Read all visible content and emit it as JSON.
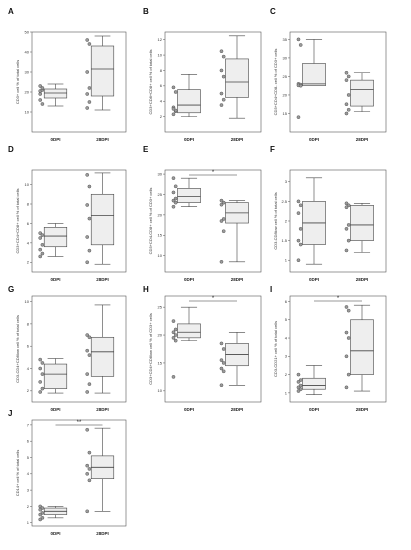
{
  "chart_data": [
    {
      "panel": "A",
      "type": "box",
      "ylabel": "CD3+ cell % of total cells",
      "categories": [
        "0DPI",
        "28DPI"
      ],
      "ylim": [
        0,
        50
      ],
      "yticks": [
        10,
        20,
        30,
        40,
        50
      ],
      "boxes": [
        {
          "min": 13,
          "q1": 17,
          "median": 19.5,
          "q3": 21.5,
          "max": 24
        },
        {
          "min": 11,
          "q1": 18,
          "median": 31.5,
          "q3": 43,
          "max": 48
        }
      ],
      "points": [
        [
          20.5,
          21,
          19,
          22,
          16,
          14,
          23
        ],
        [
          46,
          44,
          30,
          22,
          19,
          15,
          12
        ]
      ],
      "significance": ""
    },
    {
      "panel": "B",
      "type": "box",
      "ylabel": "CD3+CD8+CD8+ cell % of total cells",
      "categories": [
        "0DPI",
        "28DPI"
      ],
      "ylim": [
        0,
        13
      ],
      "yticks": [
        2,
        4,
        6,
        8,
        10,
        12
      ],
      "boxes": [
        {
          "min": 2,
          "q1": 2.5,
          "median": 3.5,
          "q3": 5.5,
          "max": 7.5
        },
        {
          "min": 1.8,
          "q1": 4.5,
          "median": 6.5,
          "q3": 9.5,
          "max": 12.5
        }
      ],
      "points": [
        [
          5.8,
          5.2,
          3.2,
          2.7,
          2.3,
          2.8,
          3.0
        ],
        [
          10.5,
          9.8,
          8.0,
          7.2,
          5.0,
          4.2,
          3.5
        ]
      ],
      "significance": ""
    },
    {
      "panel": "C",
      "type": "box",
      "ylabel": "CD3+CD4+CD8- cell % of CD3+ cells",
      "categories": [
        "0DPI",
        "28DPI"
      ],
      "ylim": [
        10,
        37
      ],
      "yticks": [
        15,
        20,
        25,
        30,
        35
      ],
      "boxes": [
        {
          "min": 22.5,
          "q1": 22.5,
          "median": 23,
          "q3": 28.5,
          "max": 35
        },
        {
          "min": 15.5,
          "q1": 17,
          "median": 21.5,
          "q3": 24,
          "max": 26
        }
      ],
      "points": [
        [
          35,
          33.5,
          23,
          22.8,
          22.6,
          22.5,
          14
        ],
        [
          26,
          25,
          24,
          20,
          17.5,
          16,
          15
        ]
      ],
      "significance": ""
    },
    {
      "panel": "D",
      "type": "box",
      "ylabel": "CD3+CD4+CD8+ cell % of total cells",
      "categories": [
        "0DPI",
        "28DPI"
      ],
      "ylim": [
        1,
        11.5
      ],
      "yticks": [
        2,
        4,
        6,
        8,
        10
      ],
      "boxes": [
        {
          "min": 2.6,
          "q1": 3.6,
          "median": 4.7,
          "q3": 5.6,
          "max": 6
        },
        {
          "min": 1.8,
          "q1": 3.8,
          "median": 6.8,
          "q3": 9,
          "max": 11.2
        }
      ],
      "points": [
        [
          5.0,
          4.8,
          4.5,
          3.8,
          3.3,
          2.9,
          2.6
        ],
        [
          11.0,
          9.8,
          7.9,
          6.5,
          4.6,
          3.2,
          2.0
        ]
      ],
      "significance": ""
    },
    {
      "panel": "E",
      "type": "box",
      "ylabel": "CD3+CD4-CD8+ cell % of CD3+ cells",
      "categories": [
        "0DPI",
        "28DPI"
      ],
      "ylim": [
        6,
        31
      ],
      "yticks": [
        10,
        15,
        20,
        25,
        30
      ],
      "boxes": [
        {
          "min": 22,
          "q1": 23,
          "median": 24.5,
          "q3": 26.5,
          "max": 29
        },
        {
          "min": 8.5,
          "q1": 18,
          "median": 20.5,
          "q3": 23,
          "max": 23.5
        }
      ],
      "points": [
        [
          29,
          27,
          25.5,
          24,
          23.5,
          23,
          22
        ],
        [
          23.5,
          23,
          22.5,
          19,
          18.5,
          16,
          8.5
        ]
      ],
      "significance": "*"
    },
    {
      "panel": "F",
      "type": "box",
      "ylabel": "CD3-CD8low cell % of total cells",
      "categories": [
        "0DPI",
        "28DPI"
      ],
      "ylim": [
        0.7,
        3.3
      ],
      "yticks": [
        1,
        1.5,
        2,
        2.5,
        3
      ],
      "boxes": [
        {
          "min": 0.9,
          "q1": 1.4,
          "median": 1.95,
          "q3": 2.5,
          "max": 3.1
        },
        {
          "min": 1.2,
          "q1": 1.5,
          "median": 1.9,
          "q3": 2.4,
          "max": 2.45
        }
      ],
      "points": [
        [
          2.5,
          2.4,
          2.2,
          1.8,
          1.5,
          1.4,
          1.0
        ],
        [
          2.45,
          2.4,
          2.35,
          1.9,
          1.8,
          1.5,
          1.25
        ]
      ],
      "significance": ""
    },
    {
      "panel": "G",
      "type": "box",
      "ylabel": "CD3-CD4+CD8low cell % of total cells",
      "categories": [
        "0DPI",
        "28DPI"
      ],
      "ylim": [
        1,
        10.5
      ],
      "yticks": [
        2,
        4,
        6,
        8,
        10
      ],
      "boxes": [
        {
          "min": 1.8,
          "q1": 2.2,
          "median": 3.5,
          "q3": 4.4,
          "max": 4.9
        },
        {
          "min": 1.8,
          "q1": 3.3,
          "median": 5.5,
          "q3": 6.8,
          "max": 9.7
        }
      ],
      "points": [
        [
          4.8,
          4.5,
          4.0,
          3.5,
          2.8,
          2.2,
          1.9
        ],
        [
          7.0,
          6.8,
          5.6,
          5.2,
          3.5,
          2.6,
          1.9
        ]
      ],
      "significance": ""
    },
    {
      "panel": "H",
      "type": "box",
      "ylabel": "CD3+CD4+CD8low cell % of CD3+ cells",
      "categories": [
        "0DPI",
        "28DPI"
      ],
      "ylim": [
        8,
        27
      ],
      "yticks": [
        10,
        15,
        20,
        25
      ],
      "boxes": [
        {
          "min": 19,
          "q1": 19.5,
          "median": 20.5,
          "q3": 22,
          "max": 25
        },
        {
          "min": 11,
          "q1": 14.5,
          "median": 16.5,
          "q3": 18.5,
          "max": 20.5
        }
      ],
      "points": [
        [
          22.5,
          21,
          20.5,
          20,
          19.5,
          19,
          12.5
        ],
        [
          18.5,
          17.5,
          15.5,
          15,
          14,
          13.5,
          11
        ]
      ],
      "significance": "*"
    },
    {
      "panel": "I",
      "type": "box",
      "ylabel": "CD3-CD21+ cell % of total cells",
      "categories": [
        "0DPI",
        "28DPI"
      ],
      "ylim": [
        0.5,
        6.3
      ],
      "yticks": [
        1,
        2,
        3,
        4,
        5,
        6
      ],
      "boxes": [
        {
          "min": 0.9,
          "q1": 1.2,
          "median": 1.4,
          "q3": 1.8,
          "max": 2.5
        },
        {
          "min": 1.1,
          "q1": 2,
          "median": 3.3,
          "q3": 5,
          "max": 5.8
        }
      ],
      "points": [
        [
          2.0,
          1.7,
          1.6,
          1.4,
          1.3,
          1.2,
          1.1
        ],
        [
          5.7,
          5.5,
          4.3,
          4.0,
          3.0,
          2.0,
          1.3
        ]
      ],
      "significance": "*"
    },
    {
      "panel": "J",
      "type": "box",
      "ylabel": "CD14+ cell % of total cells",
      "categories": [
        "0DPI",
        "28DPI"
      ],
      "ylim": [
        0.8,
        7.3
      ],
      "yticks": [
        1,
        2,
        3,
        4,
        5,
        6,
        7
      ],
      "boxes": [
        {
          "min": 1.3,
          "q1": 1.5,
          "median": 1.7,
          "q3": 1.9,
          "max": 2
        },
        {
          "min": 1.7,
          "q1": 3.7,
          "median": 4.4,
          "q3": 5.1,
          "max": 6.8
        }
      ],
      "points": [
        [
          2.0,
          1.9,
          1.8,
          1.6,
          1.5,
          1.3,
          1.2
        ],
        [
          6.7,
          5.3,
          4.5,
          4.3,
          4.0,
          3.6,
          1.7
        ]
      ],
      "significance": "**"
    }
  ]
}
